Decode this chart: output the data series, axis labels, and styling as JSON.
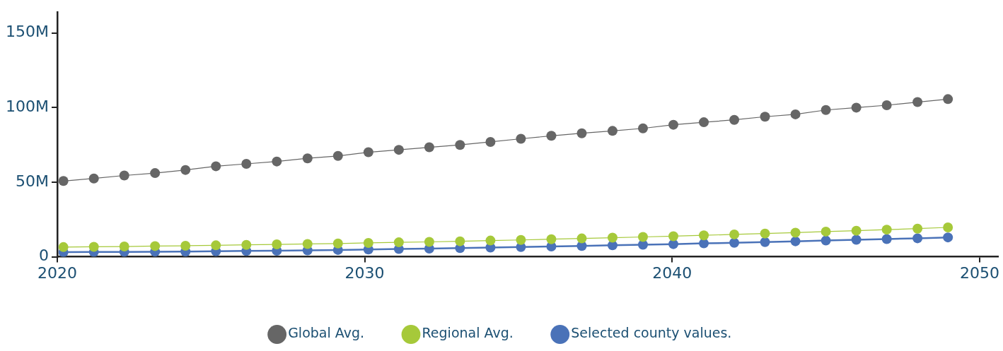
{
  "chart_data": {
    "type": "line",
    "x": [
      2020.2,
      2021.19,
      2022.18,
      2023.18,
      2024.17,
      2025.16,
      2026.15,
      2027.14,
      2028.14,
      2029.13,
      2030.12,
      2031.11,
      2032.1,
      2033.1,
      2034.09,
      2035.08,
      2036.07,
      2037.06,
      2038.06,
      2039.05,
      2040.04,
      2041.03,
      2042.02,
      2043.02,
      2044.01,
      2045,
      2045.99,
      2046.98,
      2047.98,
      2048.97
    ],
    "series": [
      {
        "name": "Global Avg.",
        "color": "#666666",
        "values": [
          50.8,
          52.5,
          54.5,
          56.1,
          58.2,
          60.7,
          62.3,
          63.9,
          66.0,
          67.6,
          70.1,
          71.7,
          73.4,
          75.0,
          77.0,
          79.1,
          81.1,
          82.8,
          84.4,
          86.1,
          88.5,
          90.2,
          91.8,
          93.9,
          95.5,
          98.4,
          100.0,
          101.6,
          103.7,
          105.7
        ]
      },
      {
        "name": "Regional Avg.",
        "color": "#a6c93a",
        "values": [
          6.5,
          6.7,
          6.9,
          7.2,
          7.4,
          7.7,
          8.0,
          8.3,
          8.6,
          8.9,
          9.3,
          9.7,
          10.0,
          10.4,
          10.9,
          11.3,
          11.8,
          12.3,
          12.8,
          13.3,
          13.8,
          14.4,
          15.0,
          15.6,
          16.2,
          16.9,
          17.5,
          18.2,
          18.9,
          19.7
        ]
      },
      {
        "name": "Selected county values.",
        "color": "#4a72b8",
        "values": [
          3.1,
          3.2,
          3.3,
          3.4,
          3.5,
          3.7,
          3.9,
          4.1,
          4.3,
          4.6,
          4.9,
          5.2,
          5.5,
          5.8,
          6.2,
          6.5,
          6.9,
          7.3,
          7.7,
          8.1,
          8.5,
          9.0,
          9.4,
          9.9,
          10.4,
          10.9,
          11.4,
          11.9,
          12.4,
          13.0
        ]
      }
    ],
    "xlim": [
      2020,
      2050.6
    ],
    "xticks": [
      2020,
      2030,
      2040,
      2050
    ],
    "ylim": [
      0,
      164
    ],
    "yticks": [
      {
        "value": 0,
        "label": "0"
      },
      {
        "value": 50,
        "label": "50M"
      },
      {
        "value": 100,
        "label": "100M"
      },
      {
        "value": 150,
        "label": "150M"
      }
    ],
    "grid": false,
    "legend": "bottom",
    "marker": "circle",
    "line_style": "solid"
  }
}
